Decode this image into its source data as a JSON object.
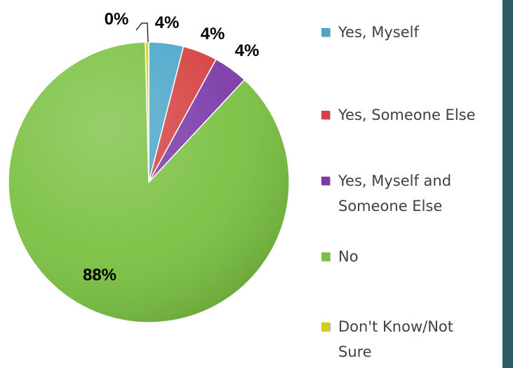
{
  "chart_data": {
    "type": "pie",
    "slices": [
      {
        "name": "Yes, Myself",
        "value": 4,
        "label": "4%",
        "color": "#4aa6c9"
      },
      {
        "name": "Yes, Someone Else",
        "value": 4,
        "label": "4%",
        "color": "#d64040"
      },
      {
        "name": "Yes, Myself and Someone Else",
        "value": 4,
        "label": "4%",
        "color": "#7b3aa8"
      },
      {
        "name": "No",
        "value": 88,
        "label": "88%",
        "color": "#7ac142"
      },
      {
        "name": "Don't Know/Not Sure",
        "value": 0.4,
        "label": "0%",
        "color": "#d8cc1a"
      }
    ],
    "legend_position": "right",
    "start_angle_deg": 0
  },
  "legend": {
    "items": [
      {
        "label": "Yes, Myself",
        "color": "#4aa6c9"
      },
      {
        "label": "Yes, Someone Else",
        "color": "#d64040"
      },
      {
        "label": "Yes, Myself and Someone Else",
        "color": "#7b3aa8"
      },
      {
        "label": "No",
        "color": "#7ac142"
      },
      {
        "label": "Don't Know/Not Sure",
        "color": "#d8cc1a"
      }
    ]
  },
  "frame": {
    "band_color": "#2a5c66"
  }
}
